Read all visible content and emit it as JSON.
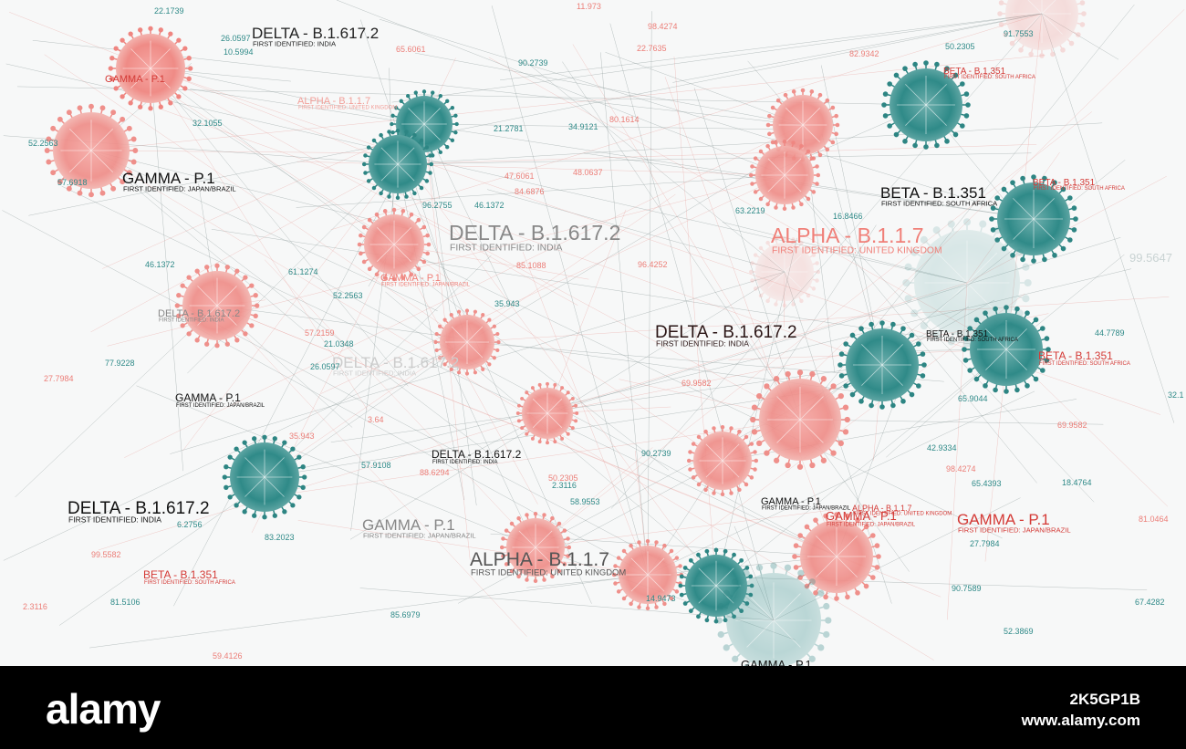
{
  "labels": [
    {
      "name": "DELTA - B.1.617.2",
      "note": "FIRST IDENTIFIED: INDIA"
    },
    {
      "name": "GAMMA - P.1"
    },
    {
      "name": "ALPHA - B.1.1.7",
      "note": "FIRST IDENTIFIED: UNITED KINGDOM"
    },
    {
      "name": "GAMMA - P.1",
      "note": "FIRST IDENTIFIED: JAPAN/BRAZIL"
    },
    {
      "name": "DELTA - B.1.617.2",
      "note": "FIRST IDENTIFIED: INDIA"
    },
    {
      "name": "ALPHA - B.1.1.7",
      "note": "FIRST IDENTIFIED: UNITED KINGDOM"
    },
    {
      "name": "BETA - B.1.351",
      "note": "FIRST IDENTIFIED: SOUTH AFRICA"
    },
    {
      "name": "BETA - B.1.351",
      "note": "FIRST IDENTIFIED: SOUTH AFRICA"
    },
    {
      "name": "BETA - B.1.351",
      "note": "FIRST IDENTIFIED: SOUTH AFRICA"
    },
    {
      "name": "GAMMA - P.1",
      "note": "FIRST IDENTIFIED: JAPAN/BRAZIL"
    },
    {
      "name": "DELTA - B.1.617.2",
      "note": "FIRST IDENTIFIED: INDIA"
    },
    {
      "name": "DELTA - B.1.617.2",
      "note": "FIRST IDENTIFIED: INDIA"
    },
    {
      "name": "DELTA - B.1.617.2",
      "note": "FIRST IDENTIFIED: INDIA"
    },
    {
      "name": "BETA - B.1.351",
      "note": "FIRST IDENTIFIED: SOUTH AFRICA"
    },
    {
      "name": "BETA - B.1.351",
      "note": "FIRST IDENTIFIED: SOUTH AFRICA"
    },
    {
      "name": "GAMMA - P.1",
      "note": "FIRST IDENTIFIED: JAPAN/BRAZIL"
    },
    {
      "name": "DELTA - B.1.617.2",
      "note": "FIRST IDENTIFIED: INDIA"
    },
    {
      "name": "DELTA - B.1.617.2",
      "note": "FIRST IDENTIFIED: INDIA"
    },
    {
      "name": "GAMMA - P.1",
      "note": "FIRST IDENTIFIED: JAPAN/BRAZIL"
    },
    {
      "name": "ALPHA - B.1.1.7",
      "note": "FIRST IDENTIFIED: UNITED KINGDOM"
    },
    {
      "name": "BETA - B.1.351",
      "note": "FIRST IDENTIFIED: SOUTH AFRICA"
    },
    {
      "name": "GAMMA - P.1",
      "note": "FIRST IDENTIFIED: JAPAN/BRAZIL"
    },
    {
      "name": "ALPHA - B.1.1.7",
      "note": "FIRST IDENTIFIED: UNITED KINGDOM"
    },
    {
      "name": "GAMMA - P.1",
      "note": "FIRST IDENTIFIED: JAPAN/BRAZIL"
    },
    {
      "name": "GAMMA - P.1",
      "note": "FIRST IDENTIFIED: JAPAN/BRAZIL"
    },
    {
      "name": "GAMMA - P.1"
    }
  ],
  "numbers": [
    "22.1739",
    "26.0597",
    "10.5994",
    "65.6061",
    "90.2739",
    "11.973",
    "98.4274",
    "22.7635",
    "50.2305",
    "91.7553",
    "82.9342",
    "52.2563",
    "57.6918",
    "32.1055",
    "34.9121",
    "21.2781",
    "80.1614",
    "48.0637",
    "47.6061",
    "84.6876",
    "96.2755",
    "46.1372",
    "63.2219",
    "16.8466",
    "99.5647",
    "46.1372",
    "61.1274",
    "52.2563",
    "85.1088",
    "96.4252",
    "35.943",
    "57.2159",
    "21.0348",
    "26.0597",
    "77.9228",
    "27.7984",
    "69.9582",
    "44.7789",
    "42.9334",
    "65.9044",
    "98.4274",
    "3.64",
    "35.943",
    "57.9108",
    "88.6294",
    "50.2305",
    "2.3116",
    "58.9553",
    "90.2739",
    "6.2756",
    "83.2023",
    "99.5582",
    "81.5106",
    "2.3116",
    "59.4126",
    "85.6979",
    "14.9473",
    "27.7984",
    "90.7589",
    "52.3869",
    "67.4282",
    "81.0464",
    "69.9582",
    "32.1",
    "65.4393",
    "18.4764"
  ],
  "footer": {
    "brand": "alamy",
    "image_id": "2K5GP1B",
    "site": "www.alamy.com"
  }
}
